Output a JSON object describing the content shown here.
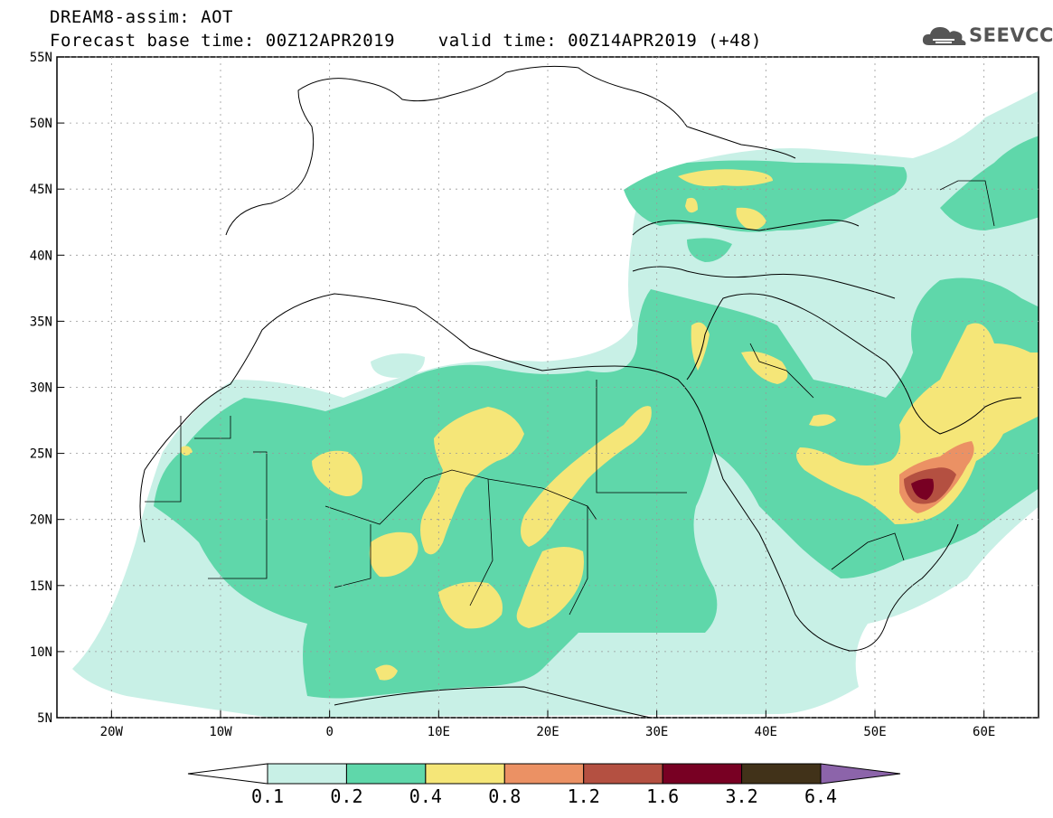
{
  "header": {
    "title_line1": "DREAM8-assim: AOT",
    "title_line2": "Forecast base time: 00Z12APR2019    valid time: 00Z14APR2019 (+48)"
  },
  "logo": {
    "text": "SEEVCCC",
    "icon": "cloud-icon"
  },
  "map": {
    "lon_range": [
      -25,
      65
    ],
    "lat_range": [
      5,
      55
    ],
    "lon_ticks": [
      {
        "value": -20,
        "label": "20W"
      },
      {
        "value": -10,
        "label": "10W"
      },
      {
        "value": 0,
        "label": "0"
      },
      {
        "value": 10,
        "label": "10E"
      },
      {
        "value": 20,
        "label": "20E"
      },
      {
        "value": 30,
        "label": "30E"
      },
      {
        "value": 40,
        "label": "40E"
      },
      {
        "value": 50,
        "label": "50E"
      },
      {
        "value": 60,
        "label": "60E"
      }
    ],
    "lat_ticks": [
      {
        "value": 55,
        "label": "55N"
      },
      {
        "value": 50,
        "label": "50N"
      },
      {
        "value": 45,
        "label": "45N"
      },
      {
        "value": 40,
        "label": "40N"
      },
      {
        "value": 35,
        "label": "35N"
      },
      {
        "value": 30,
        "label": "30N"
      },
      {
        "value": 25,
        "label": "25N"
      },
      {
        "value": 20,
        "label": "20N"
      },
      {
        "value": 15,
        "label": "15N"
      },
      {
        "value": 10,
        "label": "10N"
      },
      {
        "value": 5,
        "label": "5N"
      }
    ],
    "grid": true
  },
  "colorbar": {
    "levels": [
      "0.1",
      "0.2",
      "0.4",
      "0.8",
      "1.2",
      "1.6",
      "3.2",
      "6.4"
    ],
    "colors": [
      "#c8f0e6",
      "#5fd7aa",
      "#f5e678",
      "#eb9164",
      "#b45041",
      "#780023",
      "#413219"
    ],
    "under_color": "#ffffff",
    "over_color": "#8c64aa"
  }
}
